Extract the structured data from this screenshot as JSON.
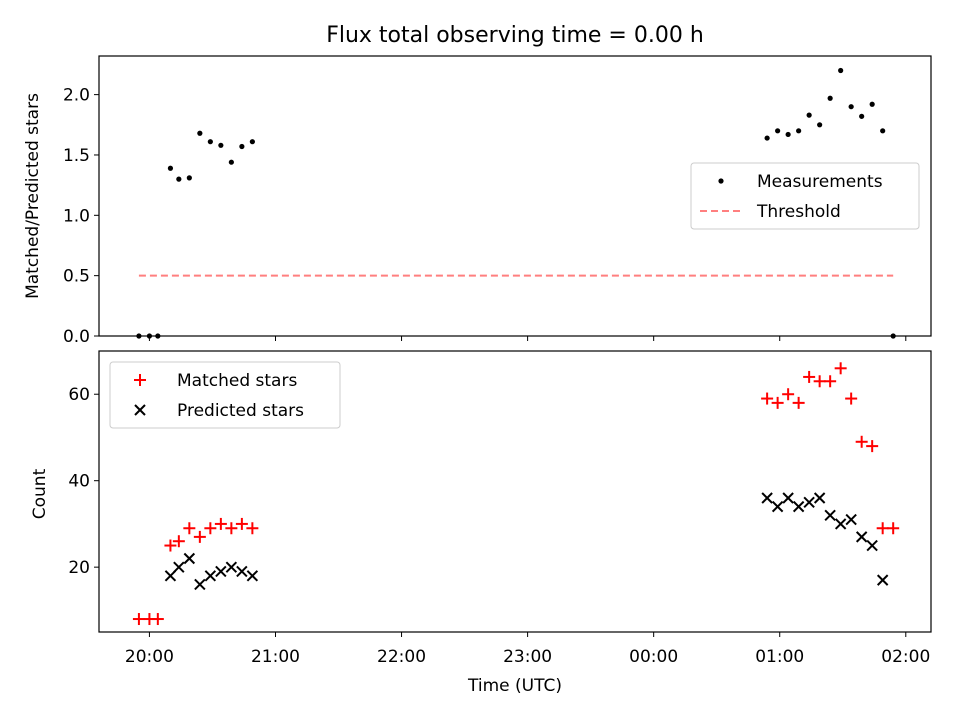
{
  "colors": {
    "measurements": "#000000",
    "threshold": "#ff7f7f",
    "matched": "#ff0000",
    "predicted": "#000000"
  },
  "chart_data": [
    {
      "type": "scatter",
      "title": "Flux total observing time = 0.00 h",
      "xlabel": "",
      "ylabel": "Matched/Predicted stars",
      "y_ticks": [
        "0.0",
        "0.5",
        "1.0",
        "1.5",
        "2.0"
      ],
      "ylim": [
        0,
        2.32
      ],
      "xlim": [
        "19:36",
        "02:12"
      ],
      "legend": {
        "placement": "center-right",
        "entries": [
          "Measurements",
          "Threshold"
        ]
      },
      "series": [
        {
          "name": "Measurements",
          "marker": "dot",
          "points": [
            [
              "19:55",
              0.0
            ],
            [
              "20:00",
              0.0
            ],
            [
              "20:04",
              0.0
            ],
            [
              "20:10",
              1.39
            ],
            [
              "20:14",
              1.3
            ],
            [
              "20:19",
              1.31
            ],
            [
              "20:24",
              1.68
            ],
            [
              "20:29",
              1.61
            ],
            [
              "20:34",
              1.58
            ],
            [
              "20:39",
              1.44
            ],
            [
              "20:44",
              1.57
            ],
            [
              "20:49",
              1.61
            ],
            [
              "00:54",
              1.64
            ],
            [
              "00:59",
              1.7
            ],
            [
              "01:04",
              1.67
            ],
            [
              "01:09",
              1.7
            ],
            [
              "01:14",
              1.83
            ],
            [
              "01:19",
              1.75
            ],
            [
              "01:24",
              1.97
            ],
            [
              "01:29",
              2.2
            ],
            [
              "01:34",
              1.9
            ],
            [
              "01:39",
              1.82
            ],
            [
              "01:44",
              1.92
            ],
            [
              "01:49",
              1.7
            ],
            [
              "01:54",
              0.0
            ]
          ]
        },
        {
          "name": "Threshold",
          "marker": "dashed-line",
          "points": [
            [
              "19:55",
              0.5
            ],
            [
              "01:54",
              0.5
            ]
          ]
        }
      ]
    },
    {
      "type": "scatter",
      "title": "",
      "xlabel": "Time (UTC)",
      "ylabel": "Count",
      "x_ticks": [
        "20:00",
        "21:00",
        "22:00",
        "23:00",
        "00:00",
        "01:00",
        "02:00"
      ],
      "y_ticks": [
        "20",
        "40",
        "60"
      ],
      "ylim": [
        5,
        70
      ],
      "xlim": [
        "19:36",
        "02:12"
      ],
      "legend": {
        "placement": "top-left",
        "entries": [
          "Matched stars",
          "Predicted stars"
        ]
      },
      "series": [
        {
          "name": "Matched stars",
          "marker": "plus",
          "points": [
            [
              "19:55",
              8
            ],
            [
              "20:00",
              8
            ],
            [
              "20:04",
              8
            ],
            [
              "20:10",
              25
            ],
            [
              "20:14",
              26
            ],
            [
              "20:19",
              29
            ],
            [
              "20:24",
              27
            ],
            [
              "20:29",
              29
            ],
            [
              "20:34",
              30
            ],
            [
              "20:39",
              29
            ],
            [
              "20:44",
              30
            ],
            [
              "20:49",
              29
            ],
            [
              "00:54",
              59
            ],
            [
              "00:59",
              58
            ],
            [
              "01:04",
              60
            ],
            [
              "01:09",
              58
            ],
            [
              "01:14",
              64
            ],
            [
              "01:19",
              63
            ],
            [
              "01:24",
              63
            ],
            [
              "01:29",
              66
            ],
            [
              "01:34",
              59
            ],
            [
              "01:39",
              49
            ],
            [
              "01:44",
              48
            ],
            [
              "01:49",
              29
            ],
            [
              "01:54",
              29
            ]
          ]
        },
        {
          "name": "Predicted stars",
          "marker": "x",
          "points": [
            [
              "20:10",
              18
            ],
            [
              "20:14",
              20
            ],
            [
              "20:19",
              22
            ],
            [
              "20:24",
              16
            ],
            [
              "20:29",
              18
            ],
            [
              "20:34",
              19
            ],
            [
              "20:39",
              20
            ],
            [
              "20:44",
              19
            ],
            [
              "20:49",
              18
            ],
            [
              "00:54",
              36
            ],
            [
              "00:59",
              34
            ],
            [
              "01:04",
              36
            ],
            [
              "01:09",
              34
            ],
            [
              "01:14",
              35
            ],
            [
              "01:19",
              36
            ],
            [
              "01:24",
              32
            ],
            [
              "01:29",
              30
            ],
            [
              "01:34",
              31
            ],
            [
              "01:39",
              27
            ],
            [
              "01:44",
              25
            ],
            [
              "01:49",
              17
            ]
          ]
        }
      ]
    }
  ]
}
